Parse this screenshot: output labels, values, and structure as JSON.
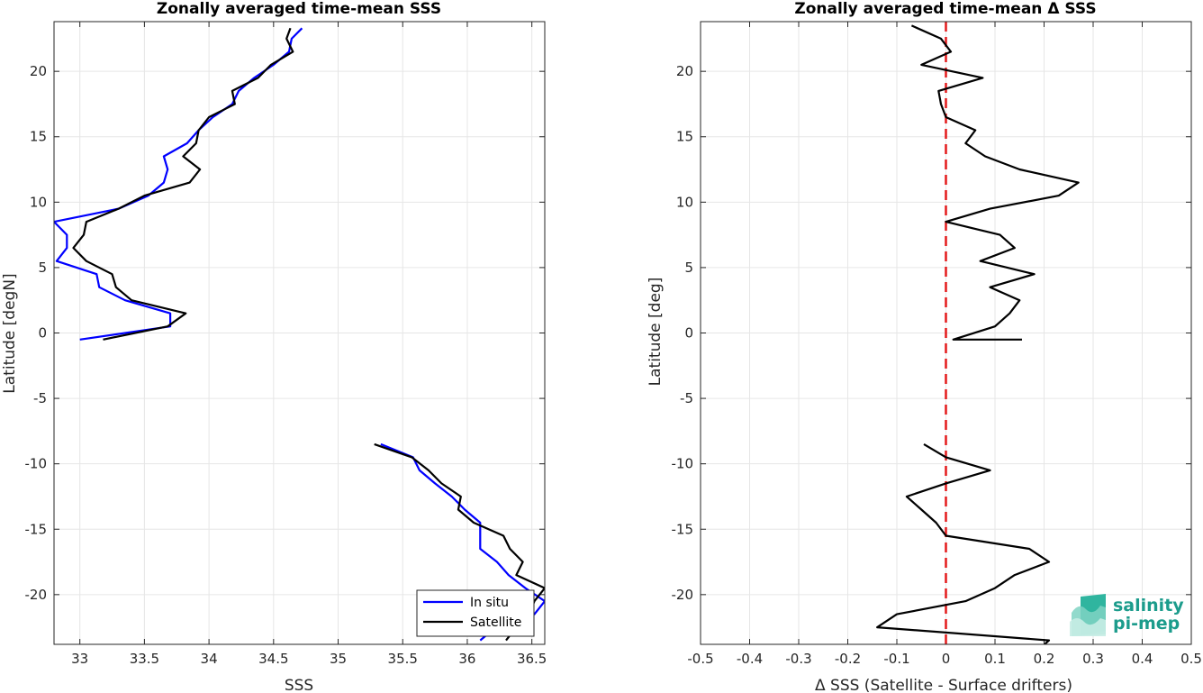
{
  "chart_data": [
    {
      "type": "line",
      "title": "Zonally averaged time-mean SSS",
      "xlabel": "SSS",
      "ylabel": "Latitude [degN]",
      "xlim": [
        32.8,
        36.6
      ],
      "ylim": [
        -23.8,
        23.8
      ],
      "xticks": [
        33,
        33.5,
        34,
        34.5,
        35,
        35.5,
        36,
        36.5
      ],
      "xtick_labels": [
        "33",
        "33.5",
        "34",
        "34.5",
        "35",
        "35.5",
        "36",
        "36.5"
      ],
      "yticks": [
        -20,
        -15,
        -10,
        -5,
        0,
        5,
        10,
        15,
        20
      ],
      "ytick_labels": [
        "-20",
        "-15",
        "-10",
        "-5",
        "0",
        "5",
        "10",
        "15",
        "20"
      ],
      "grid": true,
      "legend_position": "bottom-right",
      "series": [
        {
          "name": "In situ",
          "color": "#0000ff",
          "segments": [
            [
              [
                34.72,
                23.3
              ],
              [
                34.64,
                22.5
              ],
              [
                34.62,
                21.5
              ],
              [
                34.5,
                20.5
              ],
              [
                34.35,
                19.5
              ],
              [
                34.23,
                18.5
              ],
              [
                34.18,
                17.5
              ],
              [
                34.03,
                16.5
              ],
              [
                33.92,
                15.5
              ],
              [
                33.83,
                14.5
              ],
              [
                33.65,
                13.5
              ],
              [
                33.68,
                12.5
              ],
              [
                33.65,
                11.5
              ],
              [
                33.53,
                10.5
              ],
              [
                33.3,
                9.5
              ],
              [
                32.8,
                8.5
              ],
              [
                32.9,
                7.5
              ],
              [
                32.9,
                6.5
              ],
              [
                32.82,
                5.5
              ],
              [
                33.13,
                4.5
              ],
              [
                33.15,
                3.5
              ],
              [
                33.35,
                2.5
              ],
              [
                33.7,
                1.5
              ],
              [
                33.7,
                0.5
              ],
              [
                33.0,
                -0.5
              ]
            ],
            [
              [
                35.33,
                -8.5
              ],
              [
                35.58,
                -9.5
              ],
              [
                35.63,
                -10.5
              ],
              [
                35.75,
                -11.5
              ],
              [
                35.88,
                -12.5
              ],
              [
                35.98,
                -13.5
              ],
              [
                36.1,
                -14.5
              ],
              [
                36.1,
                -15.5
              ],
              [
                36.1,
                -16.5
              ],
              [
                36.23,
                -17.5
              ],
              [
                36.32,
                -18.5
              ],
              [
                36.45,
                -19.5
              ],
              [
                36.6,
                -20.5
              ],
              [
                36.52,
                -21.5
              ],
              [
                36.22,
                -22.5
              ],
              [
                36.1,
                -23.5
              ]
            ]
          ]
        },
        {
          "name": "Satellite",
          "color": "#000000",
          "segments": [
            [
              [
                34.63,
                23.3
              ],
              [
                34.6,
                22.5
              ],
              [
                34.65,
                21.5
              ],
              [
                34.48,
                20.5
              ],
              [
                34.38,
                19.5
              ],
              [
                34.18,
                18.5
              ],
              [
                34.2,
                17.5
              ],
              [
                34.0,
                16.5
              ],
              [
                33.92,
                15.5
              ],
              [
                33.9,
                14.5
              ],
              [
                33.8,
                13.5
              ],
              [
                33.93,
                12.5
              ],
              [
                33.85,
                11.5
              ],
              [
                33.5,
                10.5
              ],
              [
                33.3,
                9.5
              ],
              [
                33.05,
                8.5
              ],
              [
                33.03,
                7.5
              ],
              [
                32.95,
                6.5
              ],
              [
                33.05,
                5.5
              ],
              [
                33.25,
                4.5
              ],
              [
                33.28,
                3.5
              ],
              [
                33.4,
                2.5
              ],
              [
                33.82,
                1.5
              ],
              [
                33.68,
                0.5
              ],
              [
                33.18,
                -0.5
              ]
            ],
            [
              [
                35.28,
                -8.5
              ],
              [
                35.57,
                -9.5
              ],
              [
                35.7,
                -10.5
              ],
              [
                35.8,
                -11.5
              ],
              [
                35.95,
                -12.5
              ],
              [
                35.93,
                -13.5
              ],
              [
                36.05,
                -14.5
              ],
              [
                36.28,
                -15.5
              ],
              [
                36.33,
                -16.5
              ],
              [
                36.43,
                -17.5
              ],
              [
                36.38,
                -18.5
              ],
              [
                36.6,
                -19.5
              ],
              [
                36.52,
                -20.5
              ],
              [
                36.48,
                -21.5
              ],
              [
                36.38,
                -22.5
              ],
              [
                36.3,
                -23.5
              ]
            ]
          ]
        }
      ]
    },
    {
      "type": "line",
      "title": "Zonally averaged time-mean Δ SSS",
      "xlabel": "Δ SSS (Satellite - Surface drifters)",
      "ylabel": "Latitude [deg]",
      "xlim": [
        -0.5,
        0.5
      ],
      "ylim": [
        -23.8,
        23.8
      ],
      "xticks": [
        -0.5,
        -0.4,
        -0.3,
        -0.2,
        -0.1,
        0,
        0.1,
        0.2,
        0.3,
        0.4,
        0.5
      ],
      "xtick_labels": [
        "-0.5",
        "-0.4",
        "-0.3",
        "-0.2",
        "-0.1",
        "0",
        "0.1",
        "0.2",
        "0.3",
        "0.4",
        "0.5"
      ],
      "yticks": [
        -20,
        -15,
        -10,
        -5,
        0,
        5,
        10,
        15,
        20
      ],
      "ytick_labels": [
        "-20",
        "-15",
        "-10",
        "-5",
        "0",
        "5",
        "10",
        "15",
        "20"
      ],
      "grid": true,
      "reference_line": {
        "x": 0,
        "color": "#e41a1c",
        "style": "dashed"
      },
      "series": [
        {
          "color": "#000000",
          "segments": [
            [
              [
                -0.07,
                23.5
              ],
              [
                -0.01,
                22.5
              ],
              [
                0.01,
                21.5
              ],
              [
                -0.05,
                20.5
              ],
              [
                0.075,
                19.5
              ],
              [
                -0.015,
                18.5
              ],
              [
                -0.01,
                17.5
              ],
              [
                0.0,
                16.5
              ],
              [
                0.06,
                15.5
              ],
              [
                0.04,
                14.5
              ],
              [
                0.08,
                13.5
              ],
              [
                0.15,
                12.5
              ],
              [
                0.27,
                11.5
              ],
              [
                0.23,
                10.5
              ],
              [
                0.09,
                9.5
              ],
              [
                0.0,
                8.5
              ],
              [
                0.11,
                7.5
              ],
              [
                0.14,
                6.5
              ],
              [
                0.07,
                5.5
              ],
              [
                0.18,
                4.5
              ],
              [
                0.09,
                3.5
              ],
              [
                0.15,
                2.5
              ],
              [
                0.13,
                1.5
              ],
              [
                0.1,
                0.5
              ],
              [
                0.015,
                -0.5
              ],
              [
                0.155,
                -0.5
              ]
            ],
            [
              [
                -0.045,
                -8.5
              ],
              [
                0.0,
                -9.5
              ],
              [
                0.09,
                -10.5
              ],
              [
                0.0,
                -11.5
              ],
              [
                -0.08,
                -12.5
              ],
              [
                -0.05,
                -13.5
              ],
              [
                -0.02,
                -14.5
              ],
              [
                0.0,
                -15.5
              ],
              [
                0.17,
                -16.5
              ],
              [
                0.21,
                -17.5
              ],
              [
                0.14,
                -18.5
              ],
              [
                0.1,
                -19.5
              ],
              [
                0.04,
                -20.5
              ],
              [
                -0.1,
                -21.5
              ],
              [
                -0.14,
                -22.5
              ],
              [
                0.21,
                -23.5
              ],
              [
                0.195,
                -24.0
              ]
            ]
          ]
        }
      ]
    }
  ],
  "logo": {
    "line1": "salinity",
    "line2": "pi-mep"
  }
}
